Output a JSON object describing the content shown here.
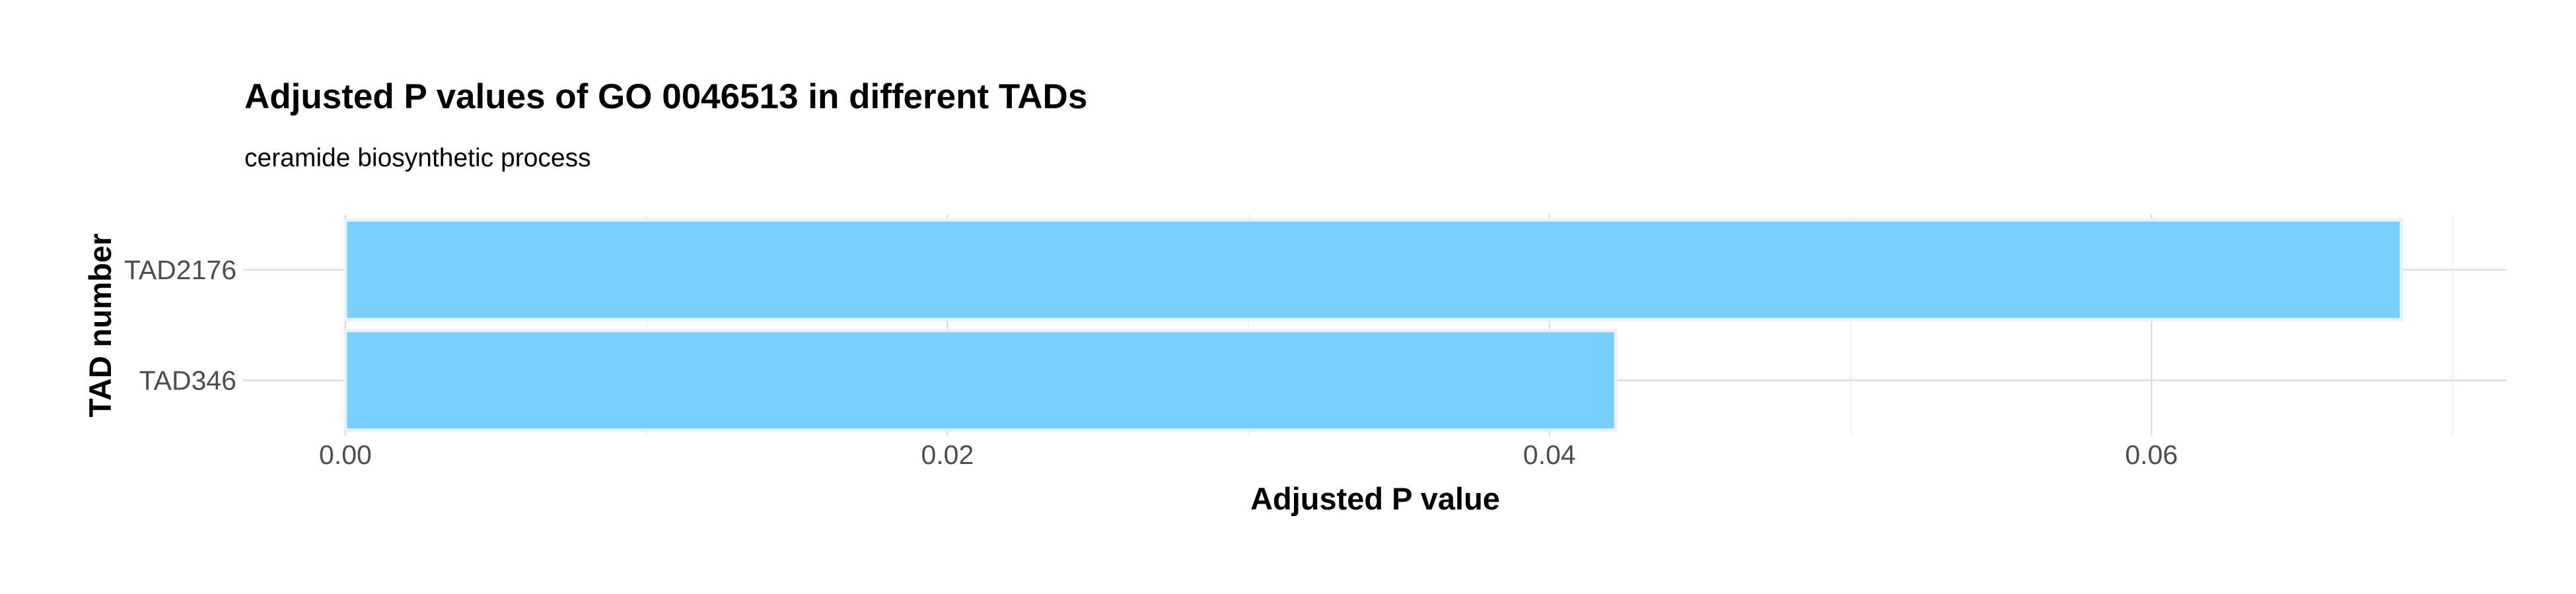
{
  "chart_data": {
    "type": "bar",
    "orientation": "horizontal",
    "title": "Adjusted P values of GO 0046513 in different TADs",
    "subtitle": "ceramide biosynthetic process",
    "xlabel": "Adjusted P value",
    "ylabel": "TAD number",
    "categories": [
      "TAD2176",
      "TAD346"
    ],
    "values": [
      0.0683,
      0.0422
    ],
    "xlim": [
      -0.0034,
      0.0718
    ],
    "xticks": [
      0.0,
      0.02,
      0.04,
      0.06
    ],
    "xtick_labels": [
      "0.00",
      "0.02",
      "0.04",
      "0.06"
    ],
    "grid": true,
    "legend": "none",
    "bar_color": "#75CFFA",
    "bar_outline_color": "#E8F1FA"
  }
}
